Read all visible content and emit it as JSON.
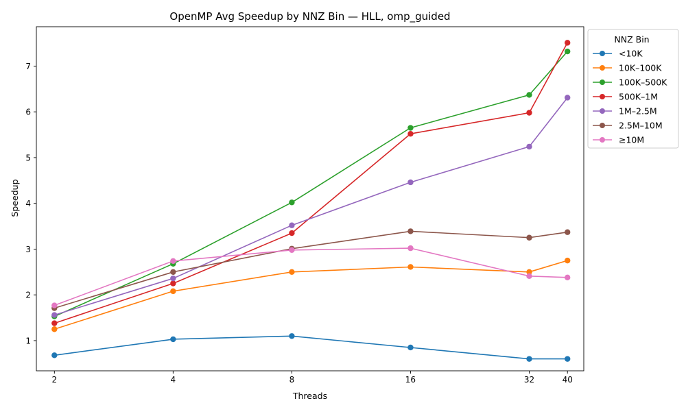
{
  "chart_data": {
    "type": "line",
    "title": "OpenMP Avg Speedup by NNZ Bin — HLL, omp_guided",
    "xlabel": "Threads",
    "ylabel": "Speedup",
    "x_scale": "log2",
    "x": [
      2,
      4,
      8,
      16,
      32,
      40
    ],
    "x_tick_labels": [
      "2",
      "4",
      "8",
      "16",
      "32",
      "40"
    ],
    "xlim": [
      1.8,
      44
    ],
    "ylim": [
      0.34,
      7.86
    ],
    "y_ticks": [
      1,
      2,
      3,
      4,
      5,
      6,
      7
    ],
    "grid": false,
    "legend_title": "NNZ Bin",
    "legend_position": "outside-upper-right",
    "series": [
      {
        "name": "<10K",
        "color": "#1f77b4",
        "values": [
          0.68,
          1.03,
          1.1,
          0.85,
          0.6,
          0.6
        ]
      },
      {
        "name": "10K–100K",
        "color": "#ff7f0e",
        "values": [
          1.25,
          2.08,
          2.5,
          2.61,
          2.5,
          2.75
        ]
      },
      {
        "name": "100K–500K",
        "color": "#2ca02c",
        "values": [
          1.53,
          2.68,
          4.02,
          5.65,
          6.37,
          7.32
        ]
      },
      {
        "name": "500K–1M",
        "color": "#d62728",
        "values": [
          1.38,
          2.25,
          3.35,
          5.52,
          5.98,
          7.51
        ]
      },
      {
        "name": "1M–2.5M",
        "color": "#9467bd",
        "values": [
          1.56,
          2.36,
          3.52,
          4.46,
          5.24,
          6.31
        ]
      },
      {
        "name": "2.5M–10M",
        "color": "#8c564b",
        "values": [
          1.71,
          2.5,
          3.01,
          3.39,
          3.25,
          3.37
        ]
      },
      {
        "name": "≥10M",
        "color": "#e377c2",
        "values": [
          1.77,
          2.74,
          2.98,
          3.02,
          2.41,
          2.38
        ]
      }
    ]
  }
}
